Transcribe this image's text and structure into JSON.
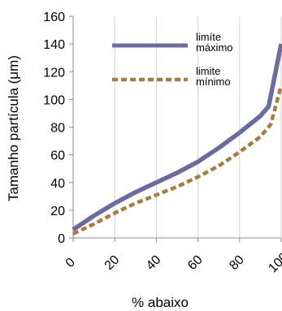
{
  "chart_data": {
    "type": "line",
    "title": "",
    "xlabel": "% abaixo",
    "ylabel": "Tamanho partícula (μm)",
    "xlim": [
      0,
      100
    ],
    "ylim": [
      0,
      160
    ],
    "x_ticks": [
      "0",
      "20",
      "40",
      "60",
      "80",
      "100"
    ],
    "y_ticks": [
      "0",
      "20",
      "40",
      "60",
      "80",
      "100",
      "120",
      "140",
      "160"
    ],
    "grid": "vertical",
    "legend": "top-right",
    "series": [
      {
        "name": "limíte máximo",
        "name_lines": [
          "limíte",
          "máximo"
        ],
        "style": "solid",
        "color": "#6b6b9e",
        "x": [
          0,
          10,
          20,
          30,
          40,
          50,
          60,
          70,
          80,
          90,
          94,
          100
        ],
        "y": [
          6,
          16,
          25,
          33,
          40,
          47,
          55,
          65,
          76,
          88,
          95,
          140
        ]
      },
      {
        "name": "limite mínimo",
        "name_lines": [
          "limite",
          "mínimo"
        ],
        "style": "dashed",
        "color": "#a67c45",
        "x": [
          0,
          10,
          20,
          30,
          40,
          50,
          60,
          70,
          80,
          90,
          95,
          100
        ],
        "y": [
          3,
          10,
          18,
          25,
          31,
          37,
          44,
          52,
          62,
          73,
          82,
          110
        ]
      }
    ]
  }
}
